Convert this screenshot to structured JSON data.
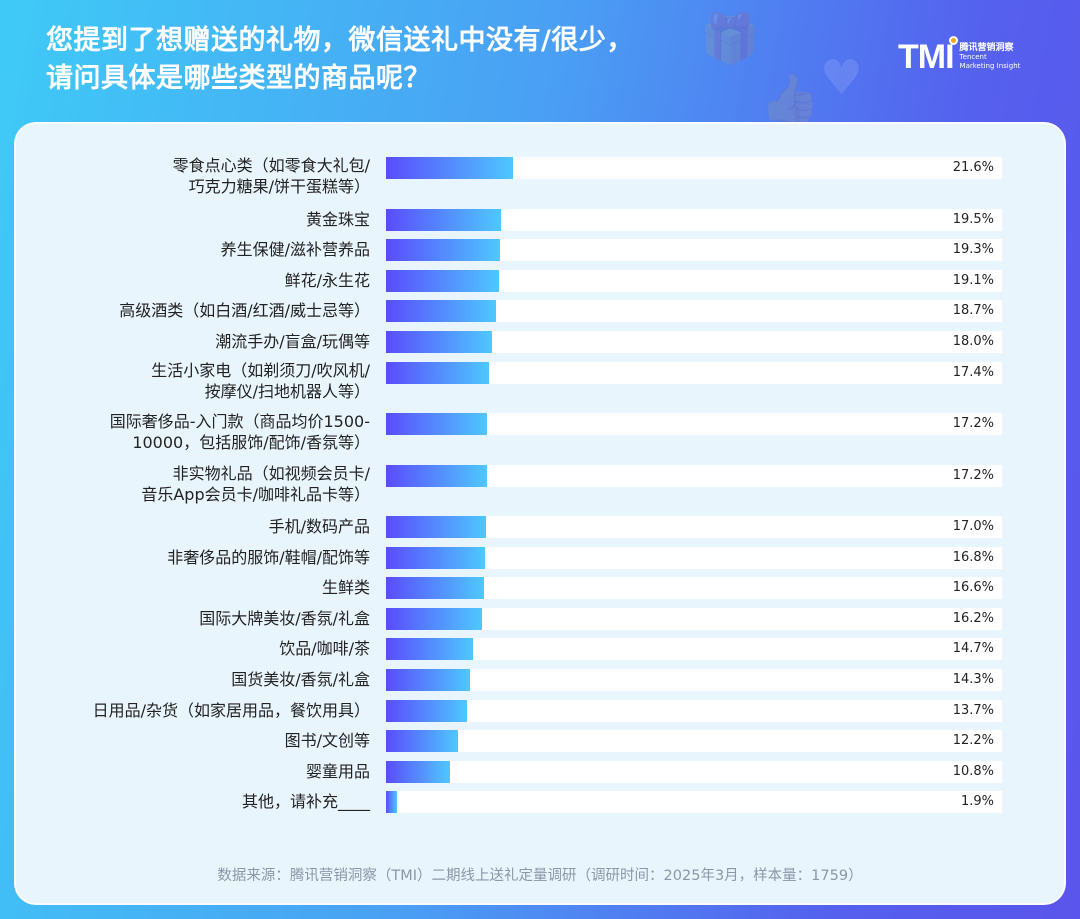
{
  "title_lines": [
    "您提到了想赠送的礼物，微信送礼中没有/很少，",
    "请问具体是哪些类型的商品呢？"
  ],
  "logo": {
    "mark": "TMI",
    "cn": "腾讯营销洞察",
    "en1": "Tencent",
    "en2": "Marketing Insight"
  },
  "chart_data": {
    "type": "bar",
    "orientation": "horizontal",
    "title": "您提到了想赠送的礼物，微信送礼中没有/很少，请问具体是哪些类型的商品呢？",
    "categories": [
      [
        "零食点心类（如零食大礼包/",
        "巧克力糖果/饼干蛋糕等）"
      ],
      [
        "黄金珠宝"
      ],
      [
        "养生保健/滋补营养品"
      ],
      [
        "鲜花/永生花"
      ],
      [
        "高级酒类（如白酒/红酒/威士忌等）"
      ],
      [
        "潮流手办/盲盒/玩偶等"
      ],
      [
        "生活小家电（如剃须刀/吹风机/",
        "按摩仪/扫地机器人等）"
      ],
      [
        "国际奢侈品-入门款（商品均价1500-",
        "10000，包括服饰/配饰/香氛等）"
      ],
      [
        "非实物礼品（如视频会员卡/",
        "音乐App会员卡/咖啡礼品卡等）"
      ],
      [
        "手机/数码产品"
      ],
      [
        "非奢侈品的服饰/鞋帽/配饰等"
      ],
      [
        "生鲜类"
      ],
      [
        "国际大牌美妆/香氛/礼盒"
      ],
      [
        "饮品/咖啡/茶"
      ],
      [
        "国货美妆/香氛/礼盒"
      ],
      [
        "日用品/杂货（如家居用品，餐饮用具）"
      ],
      [
        "图书/文创等"
      ],
      [
        "婴童用品"
      ],
      [
        "其他，请补充____"
      ]
    ],
    "values": [
      21.6,
      19.5,
      19.3,
      19.1,
      18.7,
      18.0,
      17.4,
      17.2,
      17.2,
      17.0,
      16.8,
      16.6,
      16.2,
      14.7,
      14.3,
      13.7,
      12.2,
      10.8,
      1.9
    ],
    "value_labels": [
      "21.6%",
      "19.5%",
      "19.3%",
      "19.1%",
      "18.7%",
      "18.0%",
      "17.4%",
      "17.2%",
      "17.2%",
      "17.0%",
      "16.8%",
      "16.6%",
      "16.2%",
      "14.7%",
      "14.3%",
      "13.7%",
      "12.2%",
      "10.8%",
      "1.9%"
    ],
    "unit": "%",
    "colors": {
      "bar_start": "#5a4cfc",
      "bar_end": "#4ec8fe",
      "track": "#ffffff"
    }
  },
  "footer": "数据来源：腾讯营销洞察（TMI）二期线上送礼定量调研（调研时间：2025年3月，样本量：1759）"
}
